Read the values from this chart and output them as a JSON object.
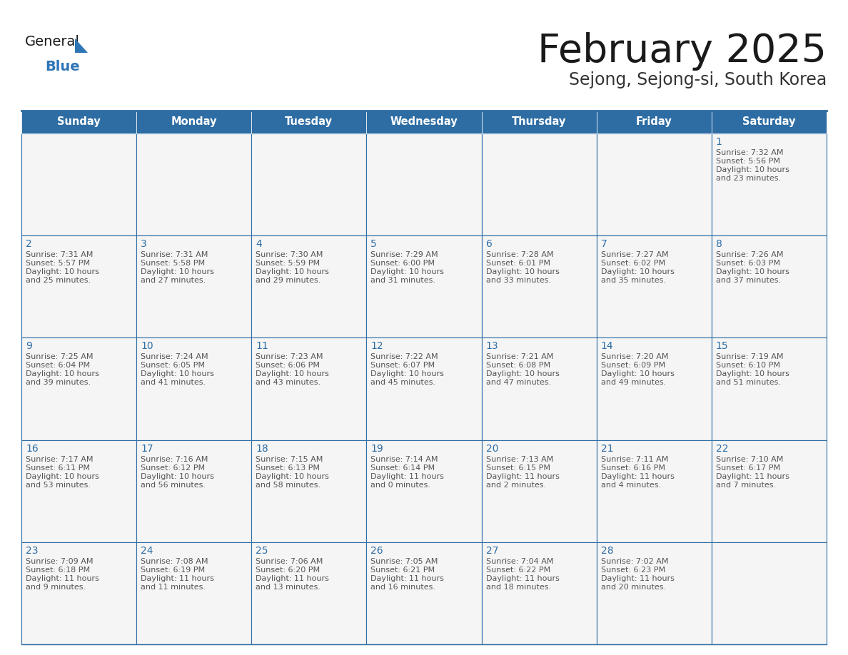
{
  "title": "February 2025",
  "subtitle": "Sejong, Sejong-si, South Korea",
  "days_of_week": [
    "Sunday",
    "Monday",
    "Tuesday",
    "Wednesday",
    "Thursday",
    "Friday",
    "Saturday"
  ],
  "header_bg": "#2E6DA4",
  "header_text": "#FFFFFF",
  "cell_bg_even": "#F5F5F5",
  "cell_bg_white": "#FFFFFF",
  "cell_border": "#2E6DA4",
  "day_num_color": "#2E6DA4",
  "info_color": "#555555",
  "title_color": "#1a1a1a",
  "subtitle_color": "#333333",
  "logo_general_color": "#1a1a1a",
  "logo_blue_color": "#2E75B6",
  "calendar_data": [
    [
      null,
      null,
      null,
      null,
      null,
      null,
      {
        "day": 1,
        "sunrise": "7:32 AM",
        "sunset": "5:56 PM",
        "daylight": "10 hours\nand 23 minutes."
      }
    ],
    [
      {
        "day": 2,
        "sunrise": "7:31 AM",
        "sunset": "5:57 PM",
        "daylight": "10 hours\nand 25 minutes."
      },
      {
        "day": 3,
        "sunrise": "7:31 AM",
        "sunset": "5:58 PM",
        "daylight": "10 hours\nand 27 minutes."
      },
      {
        "day": 4,
        "sunrise": "7:30 AM",
        "sunset": "5:59 PM",
        "daylight": "10 hours\nand 29 minutes."
      },
      {
        "day": 5,
        "sunrise": "7:29 AM",
        "sunset": "6:00 PM",
        "daylight": "10 hours\nand 31 minutes."
      },
      {
        "day": 6,
        "sunrise": "7:28 AM",
        "sunset": "6:01 PM",
        "daylight": "10 hours\nand 33 minutes."
      },
      {
        "day": 7,
        "sunrise": "7:27 AM",
        "sunset": "6:02 PM",
        "daylight": "10 hours\nand 35 minutes."
      },
      {
        "day": 8,
        "sunrise": "7:26 AM",
        "sunset": "6:03 PM",
        "daylight": "10 hours\nand 37 minutes."
      }
    ],
    [
      {
        "day": 9,
        "sunrise": "7:25 AM",
        "sunset": "6:04 PM",
        "daylight": "10 hours\nand 39 minutes."
      },
      {
        "day": 10,
        "sunrise": "7:24 AM",
        "sunset": "6:05 PM",
        "daylight": "10 hours\nand 41 minutes."
      },
      {
        "day": 11,
        "sunrise": "7:23 AM",
        "sunset": "6:06 PM",
        "daylight": "10 hours\nand 43 minutes."
      },
      {
        "day": 12,
        "sunrise": "7:22 AM",
        "sunset": "6:07 PM",
        "daylight": "10 hours\nand 45 minutes."
      },
      {
        "day": 13,
        "sunrise": "7:21 AM",
        "sunset": "6:08 PM",
        "daylight": "10 hours\nand 47 minutes."
      },
      {
        "day": 14,
        "sunrise": "7:20 AM",
        "sunset": "6:09 PM",
        "daylight": "10 hours\nand 49 minutes."
      },
      {
        "day": 15,
        "sunrise": "7:19 AM",
        "sunset": "6:10 PM",
        "daylight": "10 hours\nand 51 minutes."
      }
    ],
    [
      {
        "day": 16,
        "sunrise": "7:17 AM",
        "sunset": "6:11 PM",
        "daylight": "10 hours\nand 53 minutes."
      },
      {
        "day": 17,
        "sunrise": "7:16 AM",
        "sunset": "6:12 PM",
        "daylight": "10 hours\nand 56 minutes."
      },
      {
        "day": 18,
        "sunrise": "7:15 AM",
        "sunset": "6:13 PM",
        "daylight": "10 hours\nand 58 minutes."
      },
      {
        "day": 19,
        "sunrise": "7:14 AM",
        "sunset": "6:14 PM",
        "daylight": "11 hours\nand 0 minutes."
      },
      {
        "day": 20,
        "sunrise": "7:13 AM",
        "sunset": "6:15 PM",
        "daylight": "11 hours\nand 2 minutes."
      },
      {
        "day": 21,
        "sunrise": "7:11 AM",
        "sunset": "6:16 PM",
        "daylight": "11 hours\nand 4 minutes."
      },
      {
        "day": 22,
        "sunrise": "7:10 AM",
        "sunset": "6:17 PM",
        "daylight": "11 hours\nand 7 minutes."
      }
    ],
    [
      {
        "day": 23,
        "sunrise": "7:09 AM",
        "sunset": "6:18 PM",
        "daylight": "11 hours\nand 9 minutes."
      },
      {
        "day": 24,
        "sunrise": "7:08 AM",
        "sunset": "6:19 PM",
        "daylight": "11 hours\nand 11 minutes."
      },
      {
        "day": 25,
        "sunrise": "7:06 AM",
        "sunset": "6:20 PM",
        "daylight": "11 hours\nand 13 minutes."
      },
      {
        "day": 26,
        "sunrise": "7:05 AM",
        "sunset": "6:21 PM",
        "daylight": "11 hours\nand 16 minutes."
      },
      {
        "day": 27,
        "sunrise": "7:04 AM",
        "sunset": "6:22 PM",
        "daylight": "11 hours\nand 18 minutes."
      },
      {
        "day": 28,
        "sunrise": "7:02 AM",
        "sunset": "6:23 PM",
        "daylight": "11 hours\nand 20 minutes."
      },
      null
    ]
  ],
  "fig_width": 11.88,
  "fig_height": 9.18,
  "dpi": 100
}
